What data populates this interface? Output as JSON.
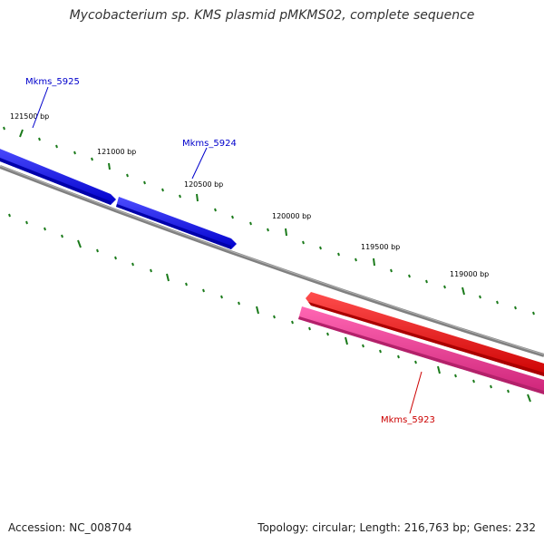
{
  "title": "Mycobacterium sp. KMS plasmid pMKMS02, complete sequence",
  "footer": {
    "accession": "Accession: NC_008704",
    "summary": "Topology: circular; Length: 216,763 bp; Genes: 232"
  },
  "ticks": [
    "121500 bp",
    "121000 bp",
    "120500 bp",
    "120000 bp",
    "119500 bp",
    "119000 bp"
  ],
  "genes": [
    {
      "name": "Mkms_5925",
      "color": "#0000cc"
    },
    {
      "name": "Mkms_5924",
      "color": "#0000cc"
    },
    {
      "name": "Mkms_5923",
      "color": "#cc0000"
    }
  ],
  "colors": {
    "forward_gene": "#0000ff",
    "reverse_gene": "#ff0000",
    "rna_gene": "#ff3399",
    "backbone": "#808080",
    "tick": "#1a7a1a"
  }
}
